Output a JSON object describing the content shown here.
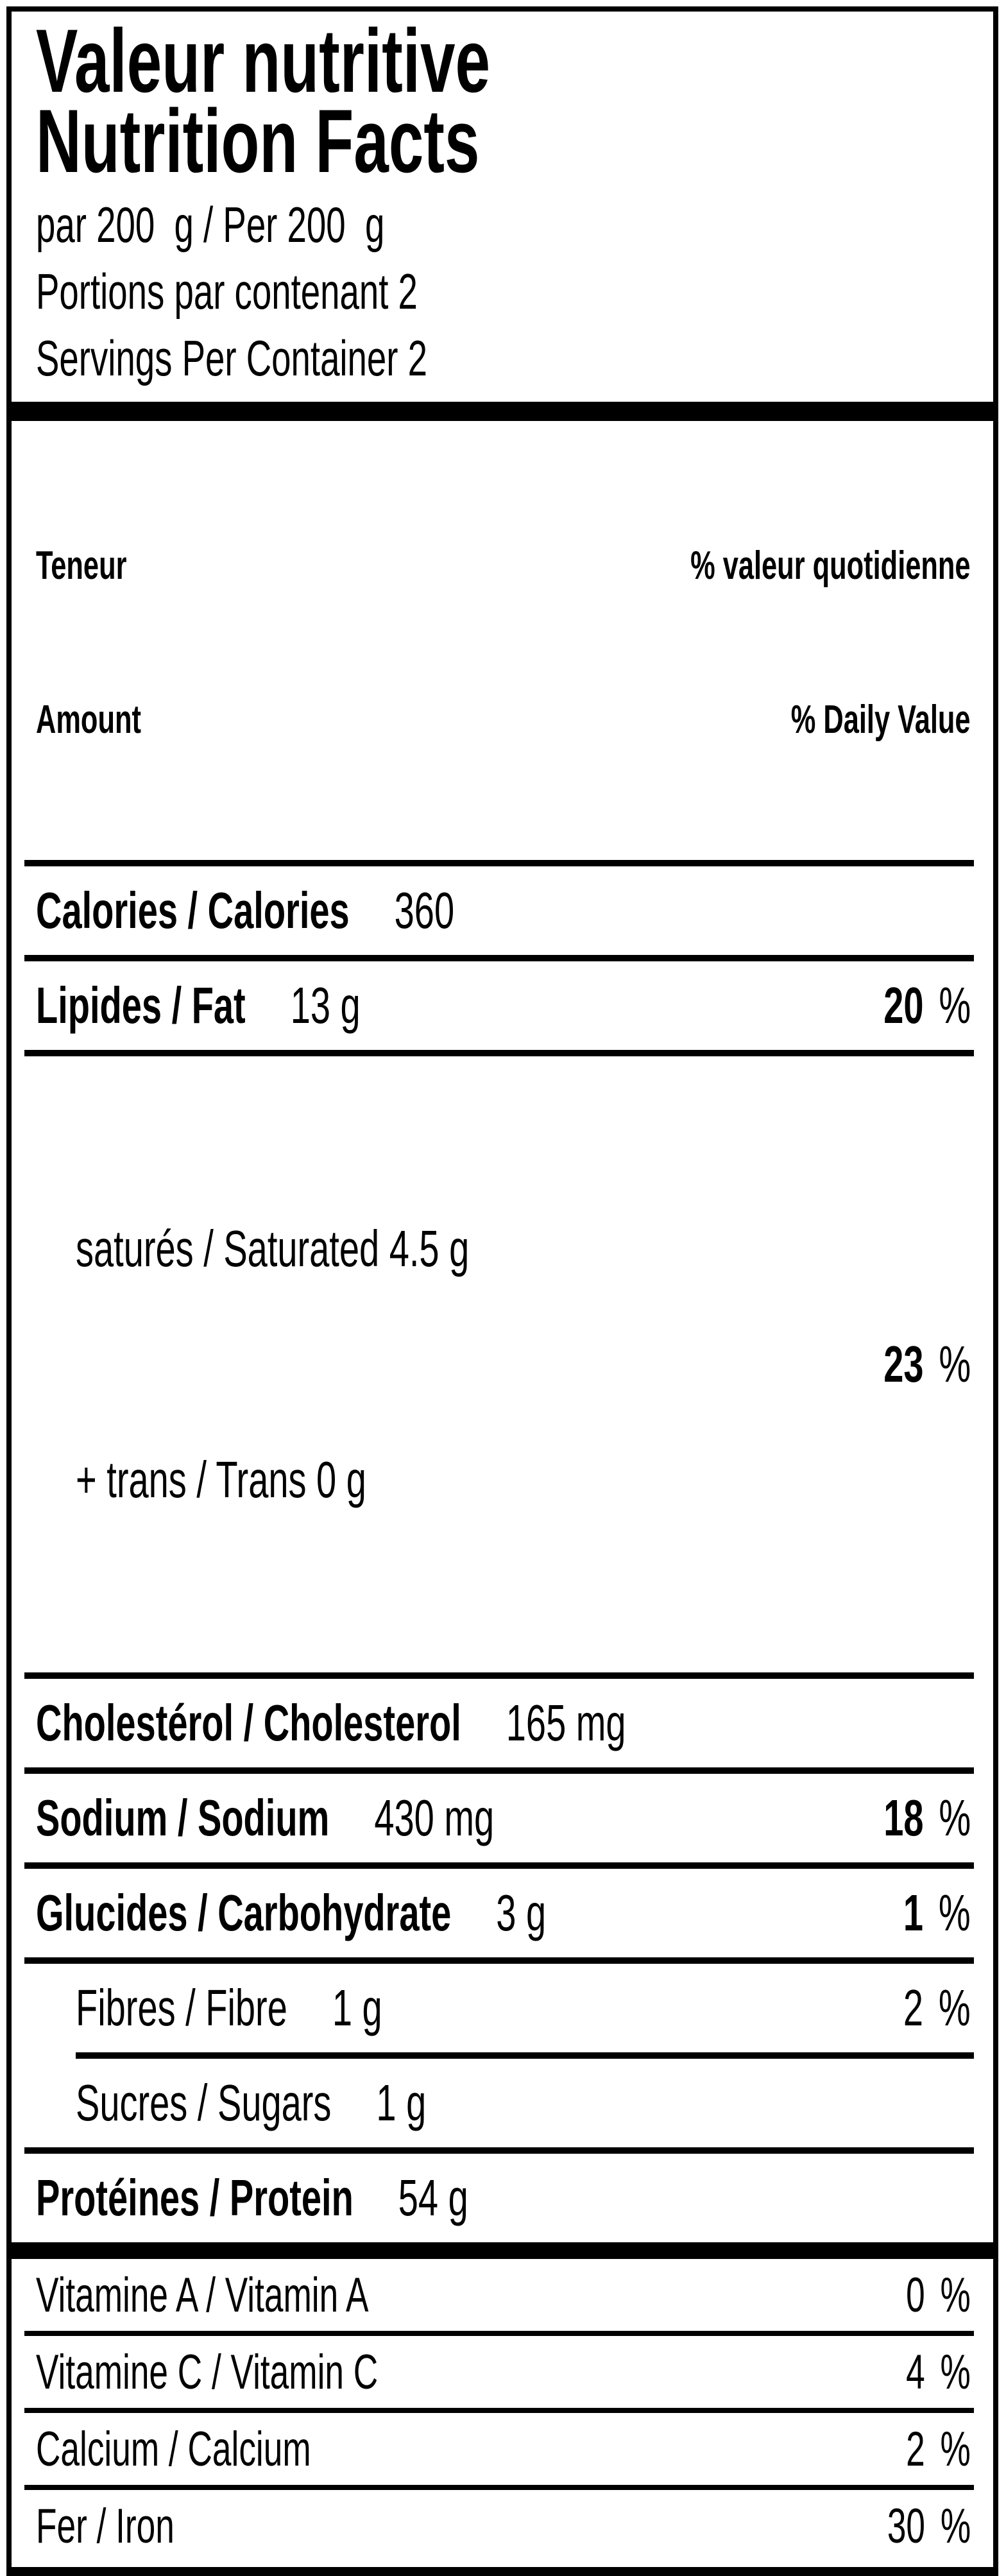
{
  "label": {
    "title_fr": "Valeur nutritive",
    "title_en": "Nutrition Facts",
    "serving_line": "par 200  g / Per 200  g",
    "servings_fr": "Portions par contenant 2",
    "servings_en": "Servings Per Container 2",
    "header": {
      "amount_fr": "Teneur",
      "amount_en": "Amount",
      "daily_value_fr": "% valeur quotidienne",
      "daily_value_en": "% Daily Value"
    },
    "percent_symbol": "%",
    "rows": {
      "calories": {
        "label": "Calories / Calories",
        "value": "360"
      },
      "fat": {
        "label": "Lipides / Fat",
        "value": "13 g",
        "dv": "20"
      },
      "satfat": {
        "line1": "saturés / Saturated 4.5 g",
        "line2": "+ trans / Trans 0 g",
        "dv": "23"
      },
      "cholesterol": {
        "label": "Cholestérol / Cholesterol",
        "value": "165 mg"
      },
      "sodium": {
        "label": "Sodium / Sodium",
        "value": "430 mg",
        "dv": "18"
      },
      "carbohydrate": {
        "label": "Glucides / Carbohydrate",
        "value": "3 g",
        "dv": "1"
      },
      "fibre": {
        "label": "Fibres / Fibre",
        "value": "1 g",
        "dv": "2"
      },
      "sugars": {
        "label": "Sucres / Sugars",
        "value": "1 g"
      },
      "protein": {
        "label": "Protéines / Protein",
        "value": "54 g"
      }
    },
    "micronutrients": {
      "vitamin_a": {
        "label": "Vitamine A / Vitamin A",
        "dv": "0"
      },
      "vitamin_c": {
        "label": "Vitamine C / Vitamin C",
        "dv": "4"
      },
      "calcium": {
        "label": "Calcium / Calcium",
        "dv": "2"
      },
      "iron": {
        "label": "Fer / Iron",
        "dv": "30"
      }
    }
  }
}
